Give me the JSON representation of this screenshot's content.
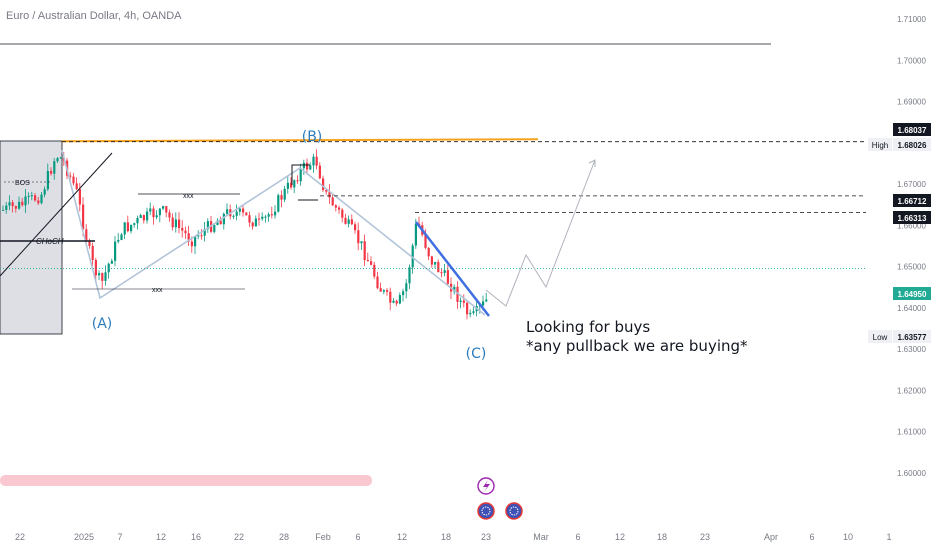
{
  "header": {
    "title": "Euro / Australian Dollar, 4h, OANDA"
  },
  "annotation": {
    "line1": "Looking for buys",
    "line2": "*any pullback we are buying*"
  },
  "chart_data": {
    "type": "candlestick",
    "symbol": "EURAUD",
    "timeframe": "4h",
    "broker": "OANDA",
    "y_ticks": [
      "1.71000",
      "1.70000",
      "1.69000",
      "1.68000",
      "1.67000",
      "1.66000",
      "1.65000",
      "1.64000",
      "1.63000",
      "1.62000",
      "1.61000",
      "1.60000"
    ],
    "x_ticks": [
      "22",
      "2025",
      "7",
      "12",
      "16",
      "22",
      "28",
      "Feb",
      "6",
      "12",
      "18",
      "23",
      "Mar",
      "6",
      "12",
      "18",
      "23",
      "Apr",
      "6",
      "10",
      "1"
    ],
    "price_labels": [
      {
        "label": "",
        "value": "1.68037"
      },
      {
        "label": "High",
        "value": "1.68026"
      },
      {
        "label": "",
        "value": "1.66712"
      },
      {
        "label": "",
        "value": "1.66313"
      },
      {
        "label": "",
        "value": "1.64950"
      },
      {
        "label": "Low",
        "value": "1.63577"
      }
    ],
    "wave_labels": [
      "(A)",
      "(B)",
      "(C)"
    ],
    "text_marks": {
      "bos": "BOS",
      "choch": "CHoCH",
      "xxx": "xxx"
    },
    "last_price": 1.6495,
    "high": 1.68026,
    "low": 1.63577,
    "colors": {
      "up": "#089981",
      "down": "#f23645",
      "wave_line": "#b2c4d9",
      "orange_line": "#f7a21b",
      "trend_line": "#3f6fe0",
      "last_price_tag": "#22ab94",
      "label_bg": "#131722",
      "projection": "#b0b3bd",
      "wave_label": "#2c7bbd"
    }
  }
}
